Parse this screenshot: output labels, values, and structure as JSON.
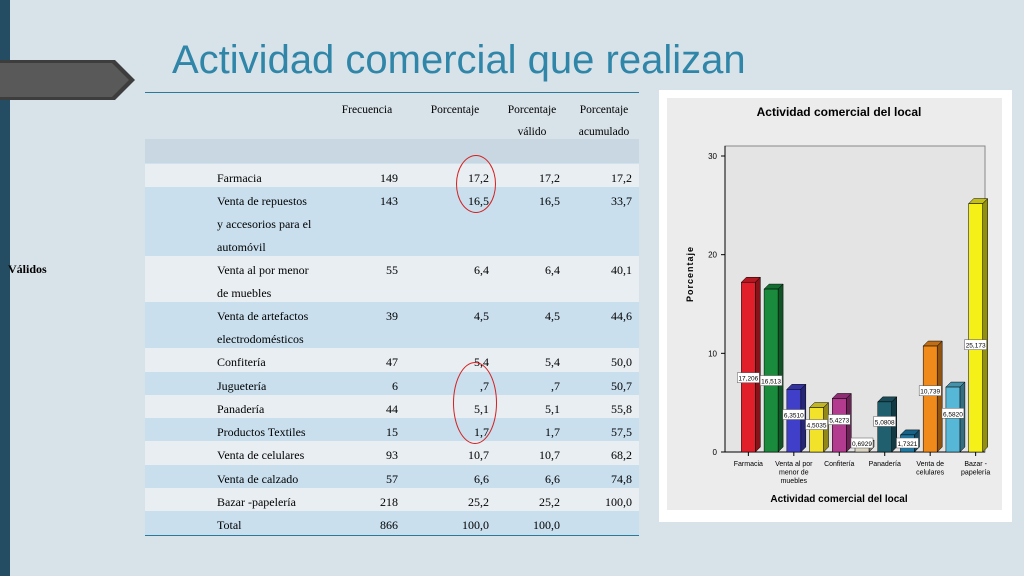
{
  "slide": {
    "title": "Actividad comercial que realizan"
  },
  "table": {
    "headers": {
      "frecuencia": "Frecuencia",
      "porcentaje": "Porcentaje",
      "porcentaje_valido": "Porcentaje",
      "porcentaje_valido_2": "válido",
      "porcentaje_acumulado": "Porcentaje",
      "porcentaje_acumulado_2": "acumulado"
    },
    "group_label": "Válidos",
    "rows": [
      {
        "cat": [
          "Farmacia"
        ],
        "freq": "149",
        "pct": "17,2",
        "valid": "17,2",
        "cum": "17,2"
      },
      {
        "cat": [
          "Venta de repuestos",
          "y accesorios para el",
          "automóvil"
        ],
        "freq": "143",
        "pct": "16,5",
        "valid": "16,5",
        "cum": "33,7"
      },
      {
        "cat": [
          "Venta al por menor",
          "de muebles"
        ],
        "freq": "55",
        "pct": "6,4",
        "valid": "6,4",
        "cum": "40,1"
      },
      {
        "cat": [
          "Venta  de artefactos",
          "electrodomésticos"
        ],
        "freq": "39",
        "pct": "4,5",
        "valid": "4,5",
        "cum": "44,6"
      },
      {
        "cat": [
          "Confitería"
        ],
        "freq": "47",
        "pct": "5,4",
        "valid": "5,4",
        "cum": "50,0"
      },
      {
        "cat": [
          "Juguetería"
        ],
        "freq": "6",
        "pct": ",7",
        "valid": ",7",
        "cum": "50,7"
      },
      {
        "cat": [
          "Panadería"
        ],
        "freq": "44",
        "pct": "5,1",
        "valid": "5,1",
        "cum": "55,8"
      },
      {
        "cat": [
          "Productos Textiles"
        ],
        "freq": "15",
        "pct": "1,7",
        "valid": "1,7",
        "cum": "57,5"
      },
      {
        "cat": [
          "Venta de celulares"
        ],
        "freq": "93",
        "pct": "10,7",
        "valid": "10,7",
        "cum": "68,2"
      },
      {
        "cat": [
          "Venta de calzado"
        ],
        "freq": "57",
        "pct": "6,6",
        "valid": "6,6",
        "cum": "74,8"
      },
      {
        "cat": [
          "Bazar -papelería"
        ],
        "freq": "218",
        "pct": "25,2",
        "valid": "25,2",
        "cum": "100,0"
      },
      {
        "cat": [
          "Total"
        ],
        "freq": "866",
        "pct": "100,0",
        "valid": "100,0",
        "cum": ""
      }
    ]
  },
  "chart_data": {
    "type": "bar",
    "title": "Actividad comercial del  local",
    "xlabel": "Actividad comercial del  local",
    "ylabel": "Porcentaje",
    "ylim": [
      0,
      30
    ],
    "yticks": [
      "0",
      "10",
      "20",
      "30"
    ],
    "grid": false,
    "legend": "none",
    "bars": [
      {
        "value": 17.206,
        "label": "17,206",
        "color": "#e01f2a"
      },
      {
        "value": 16.513,
        "label": "16,513",
        "color": "#1a8a3d"
      },
      {
        "value": 6.351,
        "label": "6,3510",
        "color": "#3f3fc9"
      },
      {
        "value": 4.5035,
        "label": "4,5035",
        "color": "#f2e22a"
      },
      {
        "value": 5.4273,
        "label": "5,4273",
        "color": "#b23a8f"
      },
      {
        "value": 0.6929,
        "label": "0,6929",
        "color": "#d9d4c2"
      },
      {
        "value": 5.0808,
        "label": "5,0808",
        "color": "#1f5f6e"
      },
      {
        "value": 1.7321,
        "label": "1,7321",
        "color": "#1d7aa6"
      },
      {
        "value": 10.739,
        "label": "10,739",
        "color": "#f08a1a"
      },
      {
        "value": 6.582,
        "label": "6,5820",
        "color": "#56b8d6"
      },
      {
        "value": 25.173,
        "label": "25,173",
        "color": "#f4f018"
      }
    ],
    "x_tick_labels": [
      {
        "lines": [
          "Farmacia"
        ],
        "bar_index": 0
      },
      {
        "lines": [
          "Venta al por",
          "menor de",
          "muebles"
        ],
        "bar_index": 2
      },
      {
        "lines": [
          "Confitería"
        ],
        "bar_index": 4
      },
      {
        "lines": [
          "Panadería"
        ],
        "bar_index": 6
      },
      {
        "lines": [
          "Venta de",
          "celulares"
        ],
        "bar_index": 8
      },
      {
        "lines": [
          "Bazar -",
          "papelería"
        ],
        "bar_index": 10
      }
    ]
  }
}
